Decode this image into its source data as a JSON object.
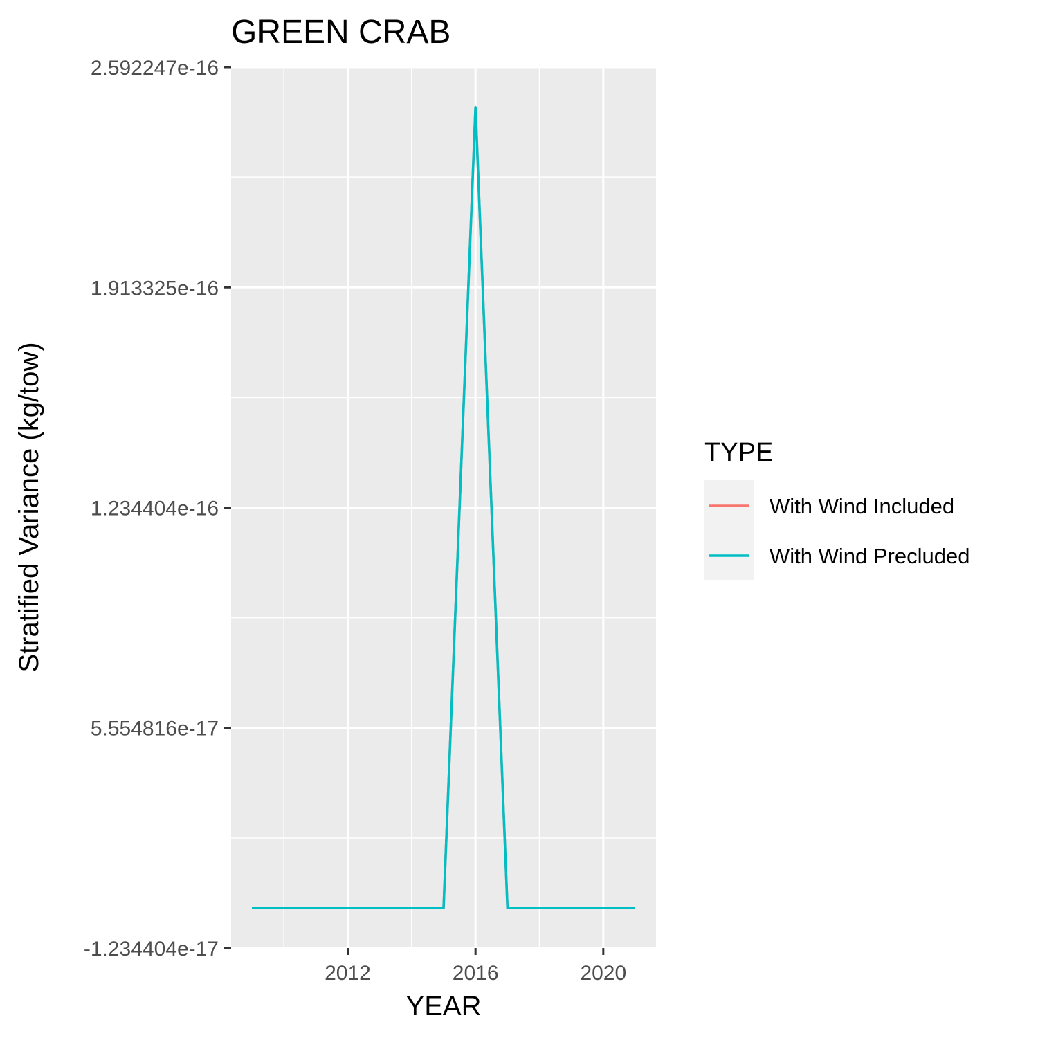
{
  "chart_data": {
    "type": "line",
    "title": "GREEN CRAB",
    "xlabel": "YEAR",
    "ylabel": "Stratified Variance (kg/tow)",
    "x": [
      2009,
      2010,
      2011,
      2012,
      2013,
      2014,
      2015,
      2016,
      2017,
      2018,
      2019,
      2020,
      2021
    ],
    "xlim": [
      2008.35,
      2021.65
    ],
    "x_ticks": [
      2012,
      2016,
      2020
    ],
    "x_tick_labels": [
      "2012",
      "2016",
      "2020"
    ],
    "ylim": [
      -1.234404e-17,
      2.592247e-16
    ],
    "y_ticks": [
      -1.234404e-17,
      5.554816e-17,
      1.234404e-16,
      1.913325e-16,
      2.592247e-16
    ],
    "y_tick_labels": [
      "-1.234404e-17",
      "5.554816e-17",
      "1.234404e-16",
      "1.913325e-16",
      "2.592247e-16"
    ],
    "grid": true,
    "legend_position": "right",
    "legend_title": "TYPE",
    "series": [
      {
        "name": "With Wind Included",
        "color": "#F8766D",
        "values": [
          0,
          0,
          0,
          0,
          0,
          0,
          0,
          2.4688e-16,
          0,
          0,
          0,
          0,
          0
        ]
      },
      {
        "name": "With Wind Precluded",
        "color": "#00BFC4",
        "values": [
          0,
          0,
          0,
          0,
          0,
          0,
          0,
          2.4688e-16,
          0,
          0,
          0,
          0,
          0
        ]
      }
    ]
  }
}
